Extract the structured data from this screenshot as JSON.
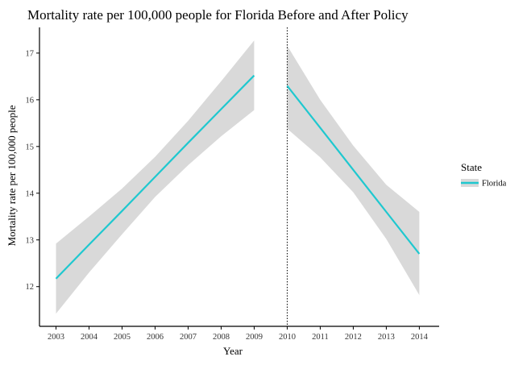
{
  "chart_data": {
    "type": "line",
    "title": "Mortality rate per 100,000 people for Florida Before and After Policy",
    "xlabel": "Year",
    "ylabel": "Mortality rate per 100,000 people",
    "xlim": [
      2002.5,
      2014.6
    ],
    "ylim": [
      11.15,
      17.55
    ],
    "x_ticks": [
      2003,
      2004,
      2005,
      2006,
      2007,
      2008,
      2009,
      2010,
      2011,
      2012,
      2013,
      2014
    ],
    "y_ticks": [
      12,
      13,
      14,
      15,
      16,
      17
    ],
    "grid": false,
    "policy_year": 2010,
    "legend": {
      "title": "State",
      "placement": "right"
    },
    "series": [
      {
        "name": "Florida",
        "color": "#1fc8cf",
        "segments": [
          {
            "x": [
              2003,
              2004,
              2005,
              2006,
              2007,
              2008,
              2009
            ],
            "y": [
              12.17,
              12.9,
              13.62,
              14.35,
              15.08,
              15.8,
              16.52
            ],
            "ci_lower": [
              11.42,
              12.3,
              13.12,
              13.92,
              14.6,
              15.22,
              15.78
            ],
            "ci_upper": [
              12.92,
              13.5,
              14.1,
              14.78,
              15.55,
              16.4,
              17.27
            ]
          },
          {
            "x": [
              2010,
              2011,
              2012,
              2013,
              2014
            ],
            "y": [
              16.3,
              15.4,
              14.5,
              13.6,
              12.7
            ],
            "ci_lower": [
              15.38,
              14.77,
              14.02,
              13.02,
              11.82
            ],
            "ci_upper": [
              17.16,
              16.0,
              15.02,
              14.18,
              13.6
            ]
          }
        ]
      }
    ],
    "ci_color": "#d9d9d9",
    "axis_color": "#000000"
  }
}
